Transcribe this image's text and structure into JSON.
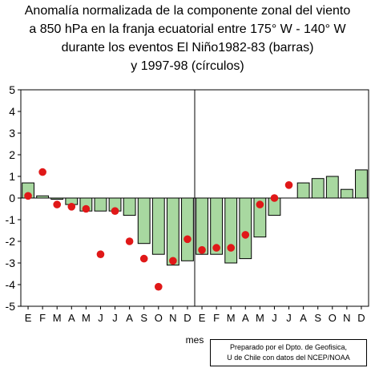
{
  "title_lines": [
    "Anomalía normalizada de la componente zonal del viento",
    "a 850 hPa en la franja ecuatorial entre 175° W - 140° W",
    "durante los eventos El Niño1982-83 (barras)",
    "y 1997-98 (círculos)"
  ],
  "credit_lines": [
    "Preparado por el Dpto. de Geofisica,",
    "U de Chile con datos del NCEP/NOAA"
  ],
  "colors": {
    "bar_fill": "#a8d8a0",
    "bar_stroke": "#000000",
    "dot": "#e01818"
  },
  "chart_data": {
    "type": "bar",
    "xlabel": "mes",
    "ylim": [
      -5,
      5
    ],
    "yticks": [
      -5,
      -4,
      -3,
      -2,
      -1,
      0,
      1,
      2,
      3,
      4,
      5
    ],
    "categories": [
      "E",
      "F",
      "M",
      "A",
      "M",
      "J",
      "J",
      "A",
      "S",
      "O",
      "N",
      "D",
      "E",
      "F",
      "M",
      "A",
      "M",
      "J",
      "J",
      "A",
      "S",
      "O",
      "N",
      "D"
    ],
    "series": [
      {
        "kind": "bar",
        "values": [
          0.7,
          0.1,
          0.0,
          -0.3,
          -0.6,
          -0.6,
          -0.6,
          -0.8,
          -2.1,
          -2.6,
          -3.1,
          -2.9,
          -2.6,
          -2.6,
          -3.0,
          -2.8,
          -1.8,
          -0.8,
          null,
          0.7,
          0.9,
          1.0,
          0.4,
          1.3
        ]
      },
      {
        "kind": "dot",
        "values": [
          0.1,
          1.2,
          -0.3,
          -0.4,
          -0.5,
          -2.6,
          -0.6,
          -2.0,
          -2.8,
          -4.1,
          -2.9,
          -1.9,
          -2.4,
          -2.3,
          -2.3,
          -1.7,
          -0.3,
          0.0,
          0.6,
          null,
          null,
          null,
          null,
          null
        ]
      }
    ],
    "divider_after_index": 11
  }
}
